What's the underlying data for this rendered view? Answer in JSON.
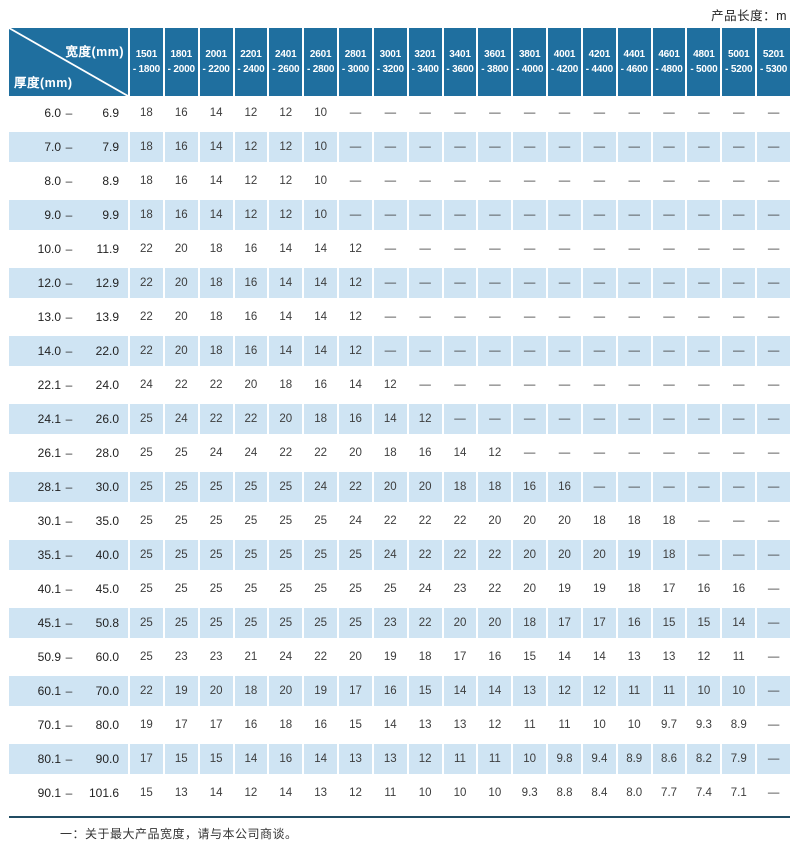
{
  "page": {
    "product_length_label": "产品长度：m"
  },
  "table": {
    "width_axis_label": "宽度(mm)",
    "thickness_axis_label": "厚度(mm)",
    "width_columns": [
      [
        "1501",
        "- 1800"
      ],
      [
        "1801",
        "- 2000"
      ],
      [
        "2001",
        "- 2200"
      ],
      [
        "2201",
        "- 2400"
      ],
      [
        "2401",
        "- 2600"
      ],
      [
        "2601",
        "- 2800"
      ],
      [
        "2801",
        "- 3000"
      ],
      [
        "3001",
        "- 3200"
      ],
      [
        "3201",
        "- 3400"
      ],
      [
        "3401",
        "- 3600"
      ],
      [
        "3601",
        "- 3800"
      ],
      [
        "3801",
        "- 4000"
      ],
      [
        "4001",
        "- 4200"
      ],
      [
        "4201",
        "- 4400"
      ],
      [
        "4401",
        "- 4600"
      ],
      [
        "4601",
        "- 4800"
      ],
      [
        "4801",
        "- 5000"
      ],
      [
        "5001",
        "- 5200"
      ],
      [
        "5201",
        "- 5300"
      ]
    ],
    "rows": [
      {
        "thickness_from": "6.0",
        "thickness_to": "6.9",
        "values": [
          "18",
          "16",
          "14",
          "12",
          "12",
          "10",
          "—",
          "—",
          "—",
          "—",
          "—",
          "—",
          "—",
          "—",
          "—",
          "—",
          "—",
          "—",
          "—"
        ]
      },
      {
        "thickness_from": "7.0",
        "thickness_to": "7.9",
        "values": [
          "18",
          "16",
          "14",
          "12",
          "12",
          "10",
          "—",
          "—",
          "—",
          "—",
          "—",
          "—",
          "—",
          "—",
          "—",
          "—",
          "—",
          "—",
          "—"
        ]
      },
      {
        "thickness_from": "8.0",
        "thickness_to": "8.9",
        "values": [
          "18",
          "16",
          "14",
          "12",
          "12",
          "10",
          "—",
          "—",
          "—",
          "—",
          "—",
          "—",
          "—",
          "—",
          "—",
          "—",
          "—",
          "—",
          "—"
        ]
      },
      {
        "thickness_from": "9.0",
        "thickness_to": "9.9",
        "values": [
          "18",
          "16",
          "14",
          "12",
          "12",
          "10",
          "—",
          "—",
          "—",
          "—",
          "—",
          "—",
          "—",
          "—",
          "—",
          "—",
          "—",
          "—",
          "—"
        ]
      },
      {
        "thickness_from": "10.0",
        "thickness_to": "11.9",
        "values": [
          "22",
          "20",
          "18",
          "16",
          "14",
          "14",
          "12",
          "—",
          "—",
          "—",
          "—",
          "—",
          "—",
          "—",
          "—",
          "—",
          "—",
          "—",
          "—"
        ]
      },
      {
        "thickness_from": "12.0",
        "thickness_to": "12.9",
        "values": [
          "22",
          "20",
          "18",
          "16",
          "14",
          "14",
          "12",
          "—",
          "—",
          "—",
          "—",
          "—",
          "—",
          "—",
          "—",
          "—",
          "—",
          "—",
          "—"
        ]
      },
      {
        "thickness_from": "13.0",
        "thickness_to": "13.9",
        "values": [
          "22",
          "20",
          "18",
          "16",
          "14",
          "14",
          "12",
          "—",
          "—",
          "—",
          "—",
          "—",
          "—",
          "—",
          "—",
          "—",
          "—",
          "—",
          "—"
        ]
      },
      {
        "thickness_from": "14.0",
        "thickness_to": "22.0",
        "values": [
          "22",
          "20",
          "18",
          "16",
          "14",
          "14",
          "12",
          "—",
          "—",
          "—",
          "—",
          "—",
          "—",
          "—",
          "—",
          "—",
          "—",
          "—",
          "—"
        ]
      },
      {
        "thickness_from": "22.1",
        "thickness_to": "24.0",
        "values": [
          "24",
          "22",
          "22",
          "20",
          "18",
          "16",
          "14",
          "12",
          "—",
          "—",
          "—",
          "—",
          "—",
          "—",
          "—",
          "—",
          "—",
          "—",
          "—"
        ]
      },
      {
        "thickness_from": "24.1",
        "thickness_to": "26.0",
        "values": [
          "25",
          "24",
          "22",
          "22",
          "20",
          "18",
          "16",
          "14",
          "12",
          "—",
          "—",
          "—",
          "—",
          "—",
          "—",
          "—",
          "—",
          "—",
          "—"
        ]
      },
      {
        "thickness_from": "26.1",
        "thickness_to": "28.0",
        "values": [
          "25",
          "25",
          "24",
          "24",
          "22",
          "22",
          "20",
          "18",
          "16",
          "14",
          "12",
          "—",
          "—",
          "—",
          "—",
          "—",
          "—",
          "—",
          "—"
        ]
      },
      {
        "thickness_from": "28.1",
        "thickness_to": "30.0",
        "values": [
          "25",
          "25",
          "25",
          "25",
          "25",
          "24",
          "22",
          "20",
          "20",
          "18",
          "18",
          "16",
          "16",
          "—",
          "—",
          "—",
          "—",
          "—",
          "—"
        ]
      },
      {
        "thickness_from": "30.1",
        "thickness_to": "35.0",
        "values": [
          "25",
          "25",
          "25",
          "25",
          "25",
          "25",
          "24",
          "22",
          "22",
          "22",
          "20",
          "20",
          "20",
          "18",
          "18",
          "18",
          "—",
          "—",
          "—"
        ]
      },
      {
        "thickness_from": "35.1",
        "thickness_to": "40.0",
        "values": [
          "25",
          "25",
          "25",
          "25",
          "25",
          "25",
          "25",
          "24",
          "22",
          "22",
          "22",
          "20",
          "20",
          "20",
          "19",
          "18",
          "—",
          "—",
          "—"
        ]
      },
      {
        "thickness_from": "40.1",
        "thickness_to": "45.0",
        "values": [
          "25",
          "25",
          "25",
          "25",
          "25",
          "25",
          "25",
          "25",
          "24",
          "23",
          "22",
          "20",
          "19",
          "19",
          "18",
          "17",
          "16",
          "16",
          "—"
        ]
      },
      {
        "thickness_from": "45.1",
        "thickness_to": "50.8",
        "values": [
          "25",
          "25",
          "25",
          "25",
          "25",
          "25",
          "25",
          "23",
          "22",
          "20",
          "20",
          "18",
          "17",
          "17",
          "16",
          "15",
          "15",
          "14",
          "—"
        ]
      },
      {
        "thickness_from": "50.9",
        "thickness_to": "60.0",
        "values": [
          "25",
          "23",
          "23",
          "21",
          "24",
          "22",
          "20",
          "19",
          "18",
          "17",
          "16",
          "15",
          "14",
          "14",
          "13",
          "13",
          "12",
          "11",
          "—"
        ]
      },
      {
        "thickness_from": "60.1",
        "thickness_to": "70.0",
        "values": [
          "22",
          "19",
          "20",
          "18",
          "20",
          "19",
          "17",
          "16",
          "15",
          "14",
          "14",
          "13",
          "12",
          "12",
          "11",
          "11",
          "10",
          "10",
          "—"
        ]
      },
      {
        "thickness_from": "70.1",
        "thickness_to": "80.0",
        "values": [
          "19",
          "17",
          "17",
          "16",
          "18",
          "16",
          "15",
          "14",
          "13",
          "13",
          "12",
          "11",
          "11",
          "10",
          "10",
          "9.7",
          "9.3",
          "8.9",
          "—"
        ]
      },
      {
        "thickness_from": "80.1",
        "thickness_to": "90.0",
        "values": [
          "17",
          "15",
          "15",
          "14",
          "16",
          "14",
          "13",
          "13",
          "12",
          "11",
          "11",
          "10",
          "9.8",
          "9.4",
          "8.9",
          "8.6",
          "8.2",
          "7.9",
          "—"
        ]
      },
      {
        "thickness_from": "90.1",
        "thickness_to": "101.6",
        "values": [
          "15",
          "13",
          "14",
          "12",
          "14",
          "13",
          "12",
          "11",
          "10",
          "10",
          "10",
          "9.3",
          "8.8",
          "8.4",
          "8.0",
          "7.7",
          "7.4",
          "7.1",
          "—"
        ]
      }
    ]
  },
  "footnote": "一：关于最大产品宽度，请与本公司商谈。",
  "colors": {
    "header_blue": "#1f6f9f",
    "row_alt_blue": "#cfe4f3",
    "rule_dark": "#214c63",
    "text_dark": "#3d3d3d"
  }
}
